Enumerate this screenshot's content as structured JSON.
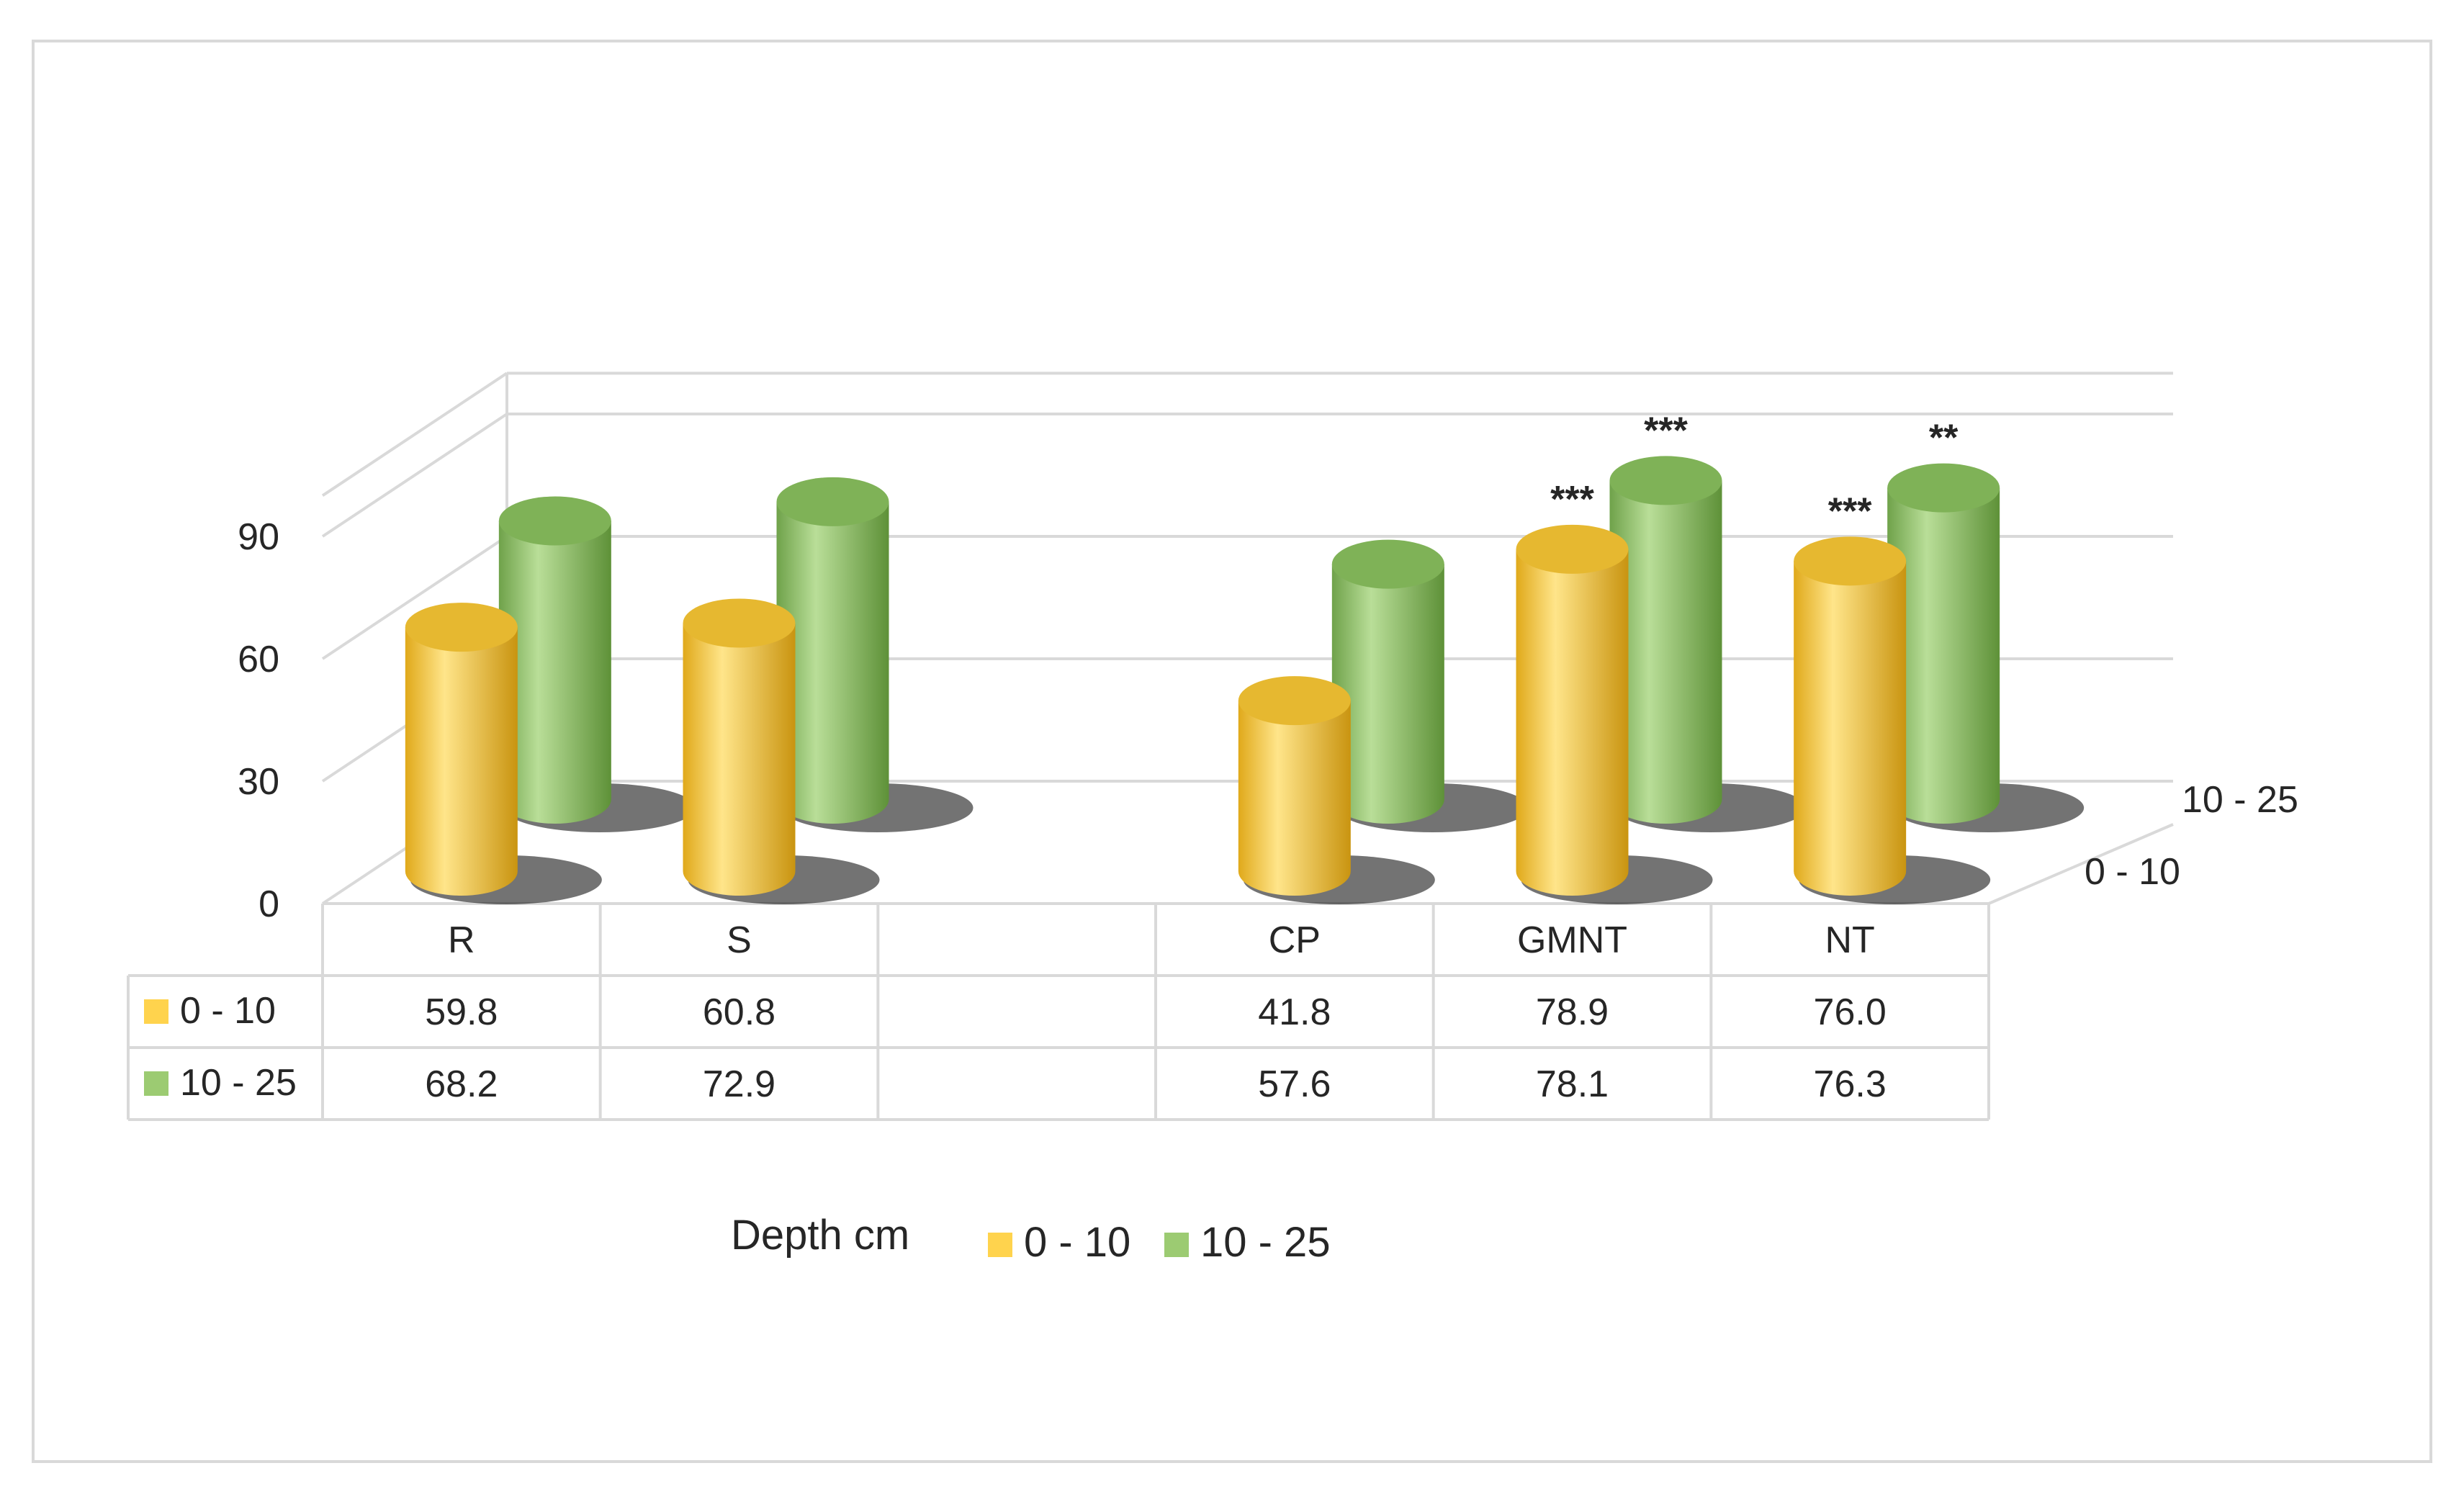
{
  "chart_data": {
    "type": "bar",
    "style": "3d-cylinder",
    "categories": [
      "R",
      "S",
      "",
      "CP",
      "GMNT",
      "NT"
    ],
    "series": [
      {
        "name": "0 - 10",
        "color": "#ffd34d",
        "values": [
          59.8,
          60.8,
          null,
          41.8,
          78.9,
          76.0
        ],
        "labels": [
          "59.8",
          "60.8",
          "",
          "41.8",
          "78.9",
          "76.0"
        ]
      },
      {
        "name": "10 - 25",
        "color": "#9ccb72",
        "values": [
          68.2,
          72.9,
          null,
          57.6,
          78.1,
          76.3
        ],
        "labels": [
          "68.2",
          "72.9",
          "",
          "57.6",
          "78.1",
          "76.3"
        ]
      }
    ],
    "significance": [
      [
        "",
        "",
        "",
        "",
        "***",
        "***"
      ],
      [
        "",
        "",
        "",
        "",
        "***",
        "**"
      ]
    ],
    "y_ticks": [
      "0",
      "30",
      "60",
      "90"
    ],
    "ylim": [
      0,
      100
    ],
    "depth_axis_labels": [
      "0 - 10",
      "10 - 25"
    ],
    "legend": {
      "title": "Depth cm",
      "position": "bottom",
      "items": [
        "0 - 10",
        "10 - 25"
      ]
    },
    "data_table": true,
    "grid": true
  }
}
